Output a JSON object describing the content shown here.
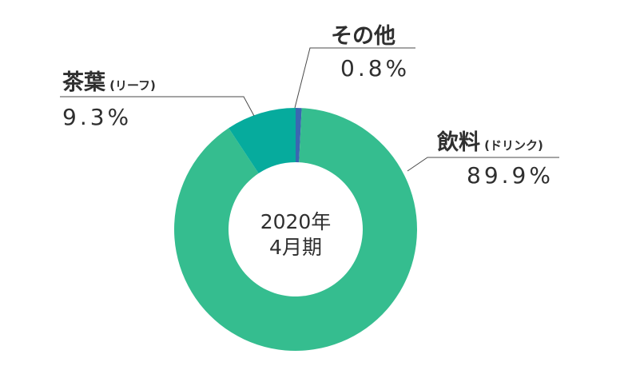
{
  "chart_data": {
    "type": "pie",
    "center_label": [
      "2020年",
      "4月期"
    ],
    "slices": [
      {
        "name": "飲料",
        "sub": "(ドリンク)",
        "value": 89.9,
        "label": "89.9%",
        "color": "#35bd8f"
      },
      {
        "name": "茶葉",
        "sub": "(リーフ)",
        "value": 9.3,
        "label": "9.3%",
        "color": "#06ab9d"
      },
      {
        "name": "その他",
        "sub": "",
        "value": 0.8,
        "label": "0.8%",
        "color": "#3a67b1"
      }
    ]
  }
}
